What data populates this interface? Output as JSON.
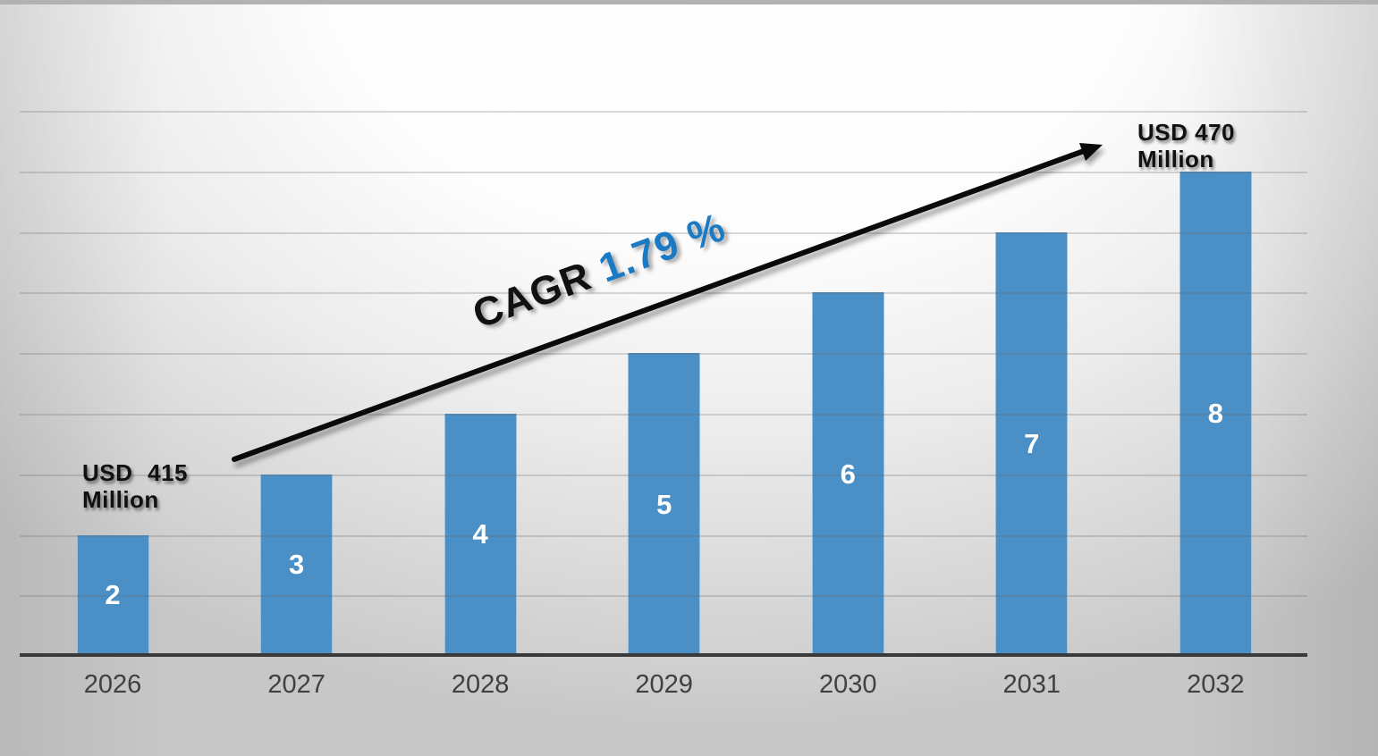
{
  "chart_data": {
    "type": "bar",
    "categories": [
      "2026",
      "2027",
      "2028",
      "2029",
      "2030",
      "2031",
      "2032"
    ],
    "values": [
      2,
      3,
      4,
      5,
      6,
      7,
      8
    ],
    "bar_labels": [
      "2",
      "3",
      "4",
      "5",
      "6",
      "7",
      "8"
    ],
    "title": "",
    "xlabel": "",
    "ylabel": "",
    "ylim": [
      0,
      9
    ],
    "grid": true,
    "gridline_values": [
      1,
      2,
      3,
      4,
      5,
      6,
      7,
      8,
      9
    ],
    "legend": "none",
    "annotations": {
      "start_value": "USD 415 Million",
      "end_value": "USD 470 Million",
      "cagr": "CAGR 1.79 %"
    }
  },
  "annotations": {
    "start_label": {
      "word1": "USD",
      "word2": "415",
      "line2": "Million"
    },
    "end_label": {
      "line1": "USD 470",
      "line2": "Million"
    },
    "cagr_label": {
      "prefix": "CAGR",
      "value": "1.79 %"
    }
  },
  "colors": {
    "bar": "#4a8fc6",
    "bar_label": "#ffffff",
    "cagr_text": "#111111",
    "cagr_value": "#1b7ac4",
    "axis": "#3a3a3a",
    "year_label": "#404040",
    "annotation_text": "#111111",
    "gridline": "#a0a0a0",
    "background_edge": "#c7c7c7",
    "background_highlight": "#ffffff"
  }
}
